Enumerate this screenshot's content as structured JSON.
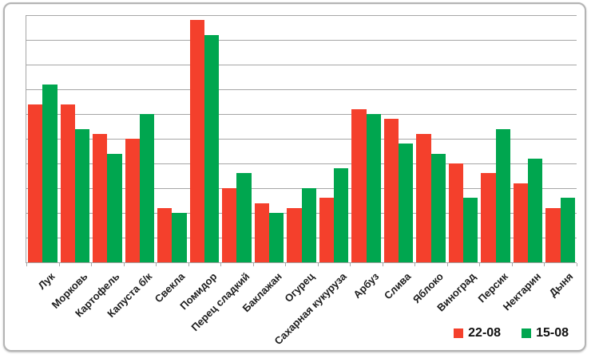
{
  "frame": {
    "background": "#ffffff",
    "border_color": "#b4b4b4"
  },
  "chart_data": {
    "type": "bar",
    "title": "",
    "categories": [
      "Лук",
      "Морковь",
      "Картофель",
      "Капуста б/к",
      "Свекла",
      "Помидор",
      "Перец сладкий",
      "Баклажан",
      "Огурец",
      "Сахарная кукуруза",
      "Арбуз",
      "Слива",
      "Яблоко",
      "Виноград",
      "Персик",
      "Нектарин",
      "Дыня"
    ],
    "series": [
      {
        "name": "22-08",
        "color": "#f4402c",
        "values": [
          64,
          64,
          52,
          50,
          22,
          98,
          30,
          24,
          22,
          26,
          62,
          58,
          52,
          40,
          36,
          32,
          22
        ]
      },
      {
        "name": "15-08",
        "color": "#00a64f",
        "values": [
          72,
          54,
          44,
          60,
          20,
          92,
          36,
          20,
          30,
          38,
          60,
          48,
          44,
          26,
          54,
          42,
          26
        ]
      }
    ],
    "ylim": [
      0,
      100
    ],
    "y_axis_labels_shown": false,
    "gridlines": {
      "step": 10,
      "color": "#a6a6a6",
      "shown": true
    },
    "axis_color": "#a6a6a6",
    "x_label_rotation_deg": 45,
    "legend_position": "bottom-right"
  }
}
